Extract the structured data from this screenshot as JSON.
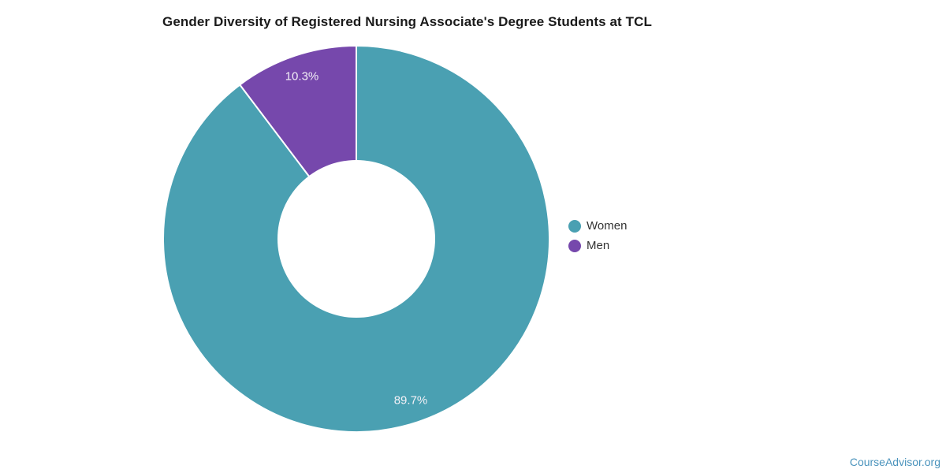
{
  "chart_data": {
    "type": "pie",
    "subtype": "donut",
    "title": "Gender Diversity of Registered Nursing Associate's Degree Students at TCL",
    "slices": [
      {
        "label": "Women",
        "value": 89.7,
        "value_label": "89.7%",
        "color": "#4AA0B2"
      },
      {
        "label": "Men",
        "value": 10.3,
        "value_label": "10.3%",
        "color": "#7648AC"
      }
    ],
    "start_angle_deg": 0,
    "direction": "clockwise",
    "inner_radius_ratio": 0.41,
    "separator_color": "#FFFFFF",
    "slice_label_color": "#F4F1F7",
    "legend_position": "right",
    "legend_text_color": "#333333"
  },
  "footer": {
    "brand": "CourseAdvisor.org",
    "brand_color": "#4A93BC"
  }
}
